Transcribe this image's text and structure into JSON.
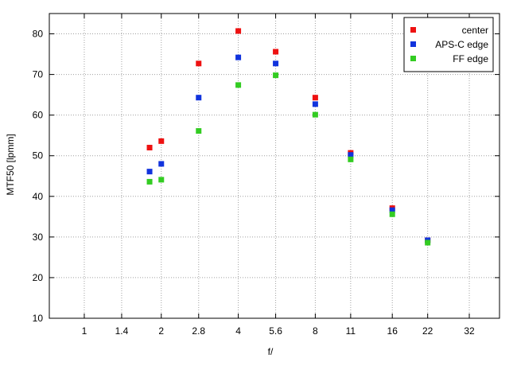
{
  "chart_data": {
    "type": "scatter",
    "title": "",
    "xlabel": "f/",
    "ylabel": "MTF50 [lpmm]",
    "x_scale": "log2",
    "x_ticks": [
      "1",
      "1.4",
      "2",
      "2.8",
      "4",
      "5.6",
      "8",
      "11",
      "16",
      "22",
      "32"
    ],
    "x_tick_values": [
      1,
      1.4,
      2,
      2.8,
      4,
      5.6,
      8,
      11,
      16,
      22,
      32
    ],
    "xlim": [
      0.73,
      42
    ],
    "ylim": [
      10,
      85
    ],
    "y_ticks": [
      10,
      20,
      30,
      40,
      50,
      60,
      70,
      80
    ],
    "grid": true,
    "legend_position": "top-right",
    "series": [
      {
        "name": "center",
        "color": "#ee1111",
        "points": [
          [
            1.8,
            52
          ],
          [
            2,
            53.6
          ],
          [
            2.8,
            72.7
          ],
          [
            4,
            80.7
          ],
          [
            5.6,
            75.6
          ],
          [
            8,
            64.3
          ],
          [
            11,
            50.7
          ],
          [
            16,
            37.1
          ],
          [
            22,
            29.2
          ]
        ]
      },
      {
        "name": "APS-C edge",
        "color": "#1133dd",
        "points": [
          [
            1.8,
            46.1
          ],
          [
            2,
            48
          ],
          [
            2.8,
            64.3
          ],
          [
            4,
            74.2
          ],
          [
            5.6,
            72.7
          ],
          [
            8,
            62.7
          ],
          [
            11,
            50.2
          ],
          [
            16,
            36.6
          ],
          [
            22,
            29.2
          ]
        ]
      },
      {
        "name": "FF edge",
        "color": "#33cc22",
        "points": [
          [
            1.8,
            43.6
          ],
          [
            2,
            44.1
          ],
          [
            2.8,
            56.1
          ],
          [
            4,
            67.4
          ],
          [
            5.6,
            69.8
          ],
          [
            8,
            60.1
          ],
          [
            11,
            49.1
          ],
          [
            16,
            35.6
          ],
          [
            22,
            28.6
          ]
        ]
      }
    ]
  }
}
